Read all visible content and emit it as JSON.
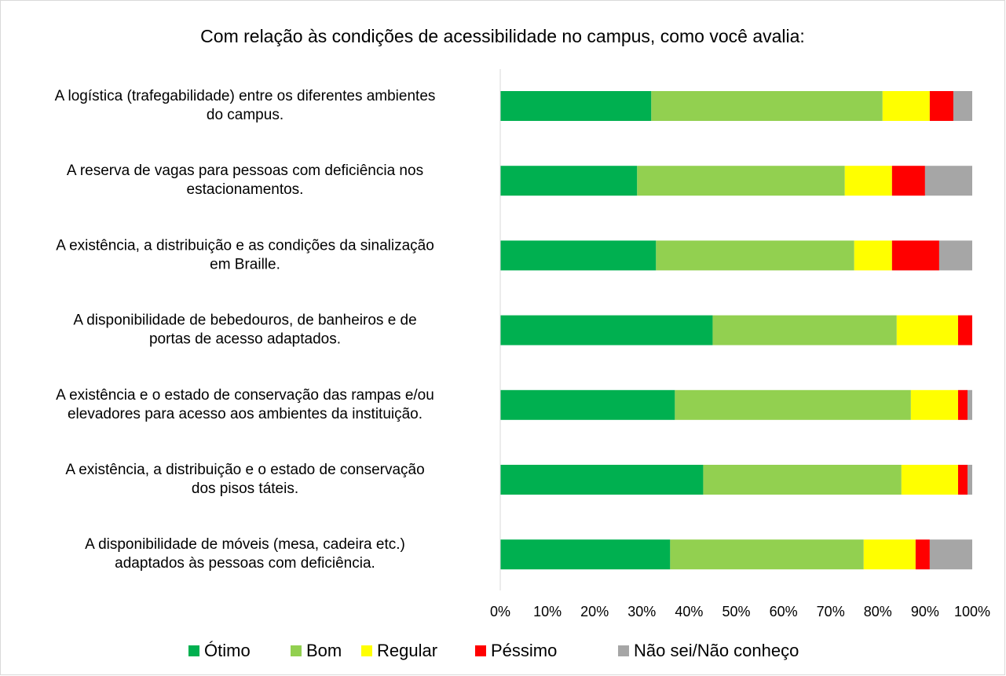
{
  "chart_data": {
    "type": "stacked-barh",
    "title": "Com relação às condições de acessibilidade no campus, como você avalia:",
    "categories": [
      [
        "A logística (trafegabilidade) entre os diferentes ambientes",
        "do campus."
      ],
      [
        "A reserva de vagas para pessoas com deficiência nos",
        "estacionamentos."
      ],
      [
        "A existência, a distribuição e as condições da sinalização",
        "em Braille."
      ],
      [
        "A disponibilidade de bebedouros, de banheiros e de",
        "portas de acesso adaptados."
      ],
      [
        "A existência e o estado de conservação das rampas e/ou",
        "elevadores para acesso aos ambientes da instituição."
      ],
      [
        "A existência, a distribuição e o estado de conservação",
        "dos pisos táteis."
      ],
      [
        "A disponibilidade de móveis (mesa, cadeira etc.)",
        "adaptados às pessoas com deficiência."
      ]
    ],
    "series": [
      {
        "name": "Ótimo",
        "color": "#00b050",
        "values": [
          32,
          29,
          33,
          45,
          37,
          43,
          36
        ]
      },
      {
        "name": "Bom",
        "color": "#92d050",
        "values": [
          49,
          44,
          42,
          39,
          50,
          42,
          41
        ]
      },
      {
        "name": "Regular",
        "color": "#ffff00",
        "values": [
          10,
          10,
          8,
          13,
          10,
          12,
          11
        ]
      },
      {
        "name": "Péssimo",
        "color": "#ff0000",
        "values": [
          5,
          7,
          10,
          3,
          2,
          2,
          3
        ]
      },
      {
        "name": "Não sei/Não conheço",
        "color": "#a6a6a6",
        "values": [
          4,
          10,
          7,
          0,
          1,
          1,
          9
        ]
      }
    ],
    "xlim": [
      0,
      100
    ],
    "xticks": [
      {
        "value": 0,
        "label": "0%"
      },
      {
        "value": 10,
        "label": "10%"
      },
      {
        "value": 20,
        "label": "20%"
      },
      {
        "value": 30,
        "label": "30%"
      },
      {
        "value": 40,
        "label": "40%"
      },
      {
        "value": 50,
        "label": "50%"
      },
      {
        "value": 60,
        "label": "60%"
      },
      {
        "value": 70,
        "label": "70%"
      },
      {
        "value": 80,
        "label": "80%"
      },
      {
        "value": 90,
        "label": "90%"
      },
      {
        "value": 100,
        "label": "100%"
      }
    ],
    "legend": "bottom"
  }
}
